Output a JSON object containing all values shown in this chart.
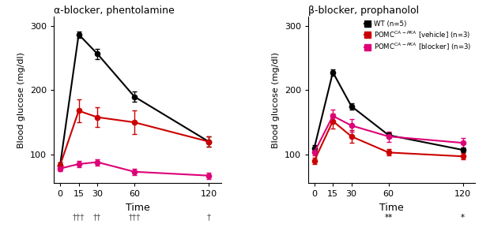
{
  "timepoints": [
    0,
    15,
    30,
    60,
    120
  ],
  "panel1": {
    "title": "α-blocker, phentolamine",
    "wt": {
      "mean": [
        83,
        287,
        257,
        190,
        120
      ],
      "err": [
        5,
        5,
        8,
        8,
        8
      ]
    },
    "vehicle": {
      "mean": [
        83,
        168,
        158,
        150,
        120
      ],
      "err": [
        5,
        18,
        15,
        18,
        8
      ]
    },
    "blocker": {
      "mean": [
        78,
        85,
        88,
        73,
        67
      ],
      "err": [
        4,
        5,
        5,
        5,
        5
      ]
    },
    "annotations": [
      {
        "x": 15,
        "text": "†††"
      },
      {
        "x": 30,
        "text": "††"
      },
      {
        "x": 60,
        "text": "†††"
      },
      {
        "x": 120,
        "text": "†"
      }
    ],
    "ylim": [
      55,
      315
    ],
    "yticks": [
      100,
      200,
      300
    ]
  },
  "panel2": {
    "title": "β-blocker, prophanolol",
    "legend": [
      "WT (n=5)",
      "POMC$^{CA-PKA}$ [vehicle] (n=3)",
      "POMC$^{CA-PKA}$ [blocker] (n=3)"
    ],
    "wt": {
      "mean": [
        110,
        228,
        175,
        130,
        107
      ],
      "err": [
        4,
        5,
        5,
        4,
        4
      ]
    },
    "vehicle": {
      "mean": [
        90,
        152,
        128,
        103,
        97
      ],
      "err": [
        5,
        12,
        10,
        5,
        5
      ]
    },
    "blocker": {
      "mean": [
        103,
        160,
        145,
        128,
        118
      ],
      "err": [
        5,
        10,
        10,
        8,
        8
      ]
    },
    "annotations": [
      {
        "x": 60,
        "text": "**"
      },
      {
        "x": 120,
        "text": "*"
      }
    ],
    "ylim": [
      55,
      315
    ],
    "yticks": [
      100,
      200,
      300
    ]
  },
  "colors": {
    "wt": "#000000",
    "vehicle": "#cc0000",
    "blocker": "#dd0077"
  },
  "xlabel": "Time",
  "ylabel": "Blood glucose (mg/dl)",
  "ann_color_panel1": "#555555",
  "ann_color_panel2": "#000000"
}
